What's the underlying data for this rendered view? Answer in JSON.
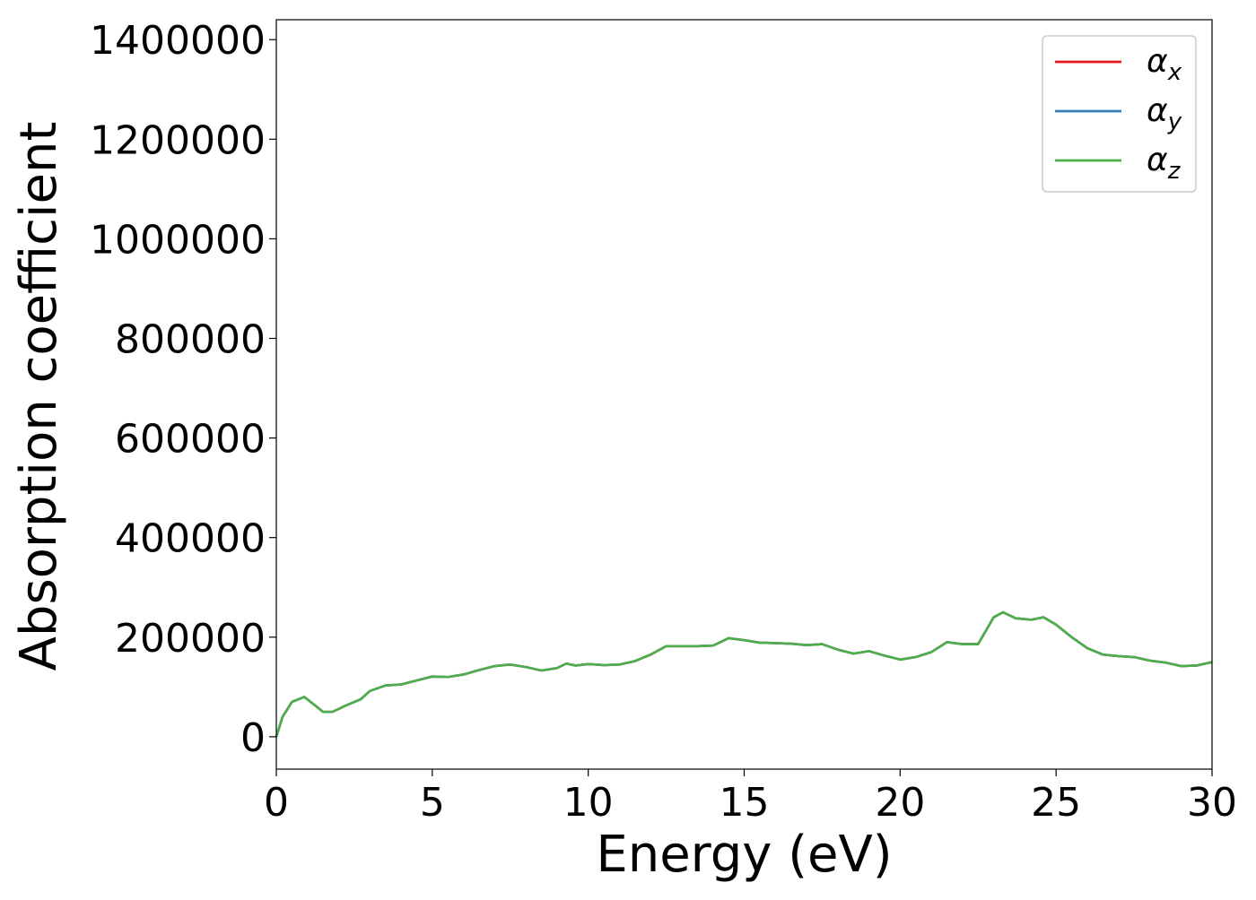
{
  "chart_data": {
    "type": "line",
    "xlabel": "Energy (eV)",
    "ylabel": "Absorption coefficient",
    "xlim": [
      0,
      30
    ],
    "ylim": [
      -65000,
      1440000
    ],
    "x_ticks": [
      0,
      5,
      10,
      15,
      20,
      25,
      30
    ],
    "x_tick_labels": [
      "0",
      "5",
      "10",
      "15",
      "20",
      "25",
      "30"
    ],
    "y_ticks": [
      0,
      200000,
      400000,
      600000,
      800000,
      1000000,
      1200000,
      1400000
    ],
    "y_tick_labels": [
      "0",
      "200000",
      "400000",
      "600000",
      "800000",
      "1000000",
      "1200000",
      "1400000"
    ],
    "grid": false,
    "legend_position": "top-right",
    "x": [
      0,
      0.2,
      0.5,
      0.9,
      1.2,
      1.5,
      1.8,
      2.2,
      2.7,
      3.0,
      3.5,
      4.0,
      4.5,
      5.0,
      5.5,
      6.0,
      6.5,
      7.0,
      7.5,
      8.0,
      8.5,
      9.0,
      9.3,
      9.6,
      10.0,
      10.5,
      11.0,
      11.5,
      12.0,
      12.5,
      13.0,
      13.5,
      14.0,
      14.5,
      15.0,
      15.5,
      16.0,
      16.5,
      17.0,
      17.5,
      18.0,
      18.5,
      19.0,
      19.5,
      20.0,
      20.5,
      21.0,
      21.5,
      22.0,
      22.5,
      23.0,
      23.3,
      23.7,
      24.2,
      24.6,
      25.0,
      25.5,
      26.0,
      26.5,
      27.0,
      27.5,
      28.0,
      28.5,
      29.0,
      29.5,
      30.0
    ],
    "series": [
      {
        "name": "α_x",
        "color": "#e41a1c",
        "values": [
          0,
          40000,
          70000,
          80000,
          65000,
          50000,
          50000,
          62000,
          75000,
          92000,
          103000,
          105000,
          113000,
          121000,
          120000,
          125000,
          134000,
          142000,
          145000,
          140000,
          133000,
          138000,
          147000,
          143000,
          146000,
          144000,
          145000,
          152000,
          165000,
          182000,
          182000,
          182000,
          183000,
          198000,
          194000,
          189000,
          188000,
          187000,
          184000,
          186000,
          175000,
          167000,
          172000,
          163000,
          155000,
          160000,
          170000,
          190000,
          186000,
          186000,
          240000,
          250000,
          238000,
          235000,
          240000,
          225000,
          200000,
          178000,
          165000,
          162000,
          160000,
          153000,
          149000,
          142000,
          143000,
          150000
        ]
      },
      {
        "name": "α_y",
        "color": "#377eb8",
        "values": [
          0,
          40000,
          70000,
          80000,
          65000,
          50000,
          50000,
          62000,
          75000,
          92000,
          103000,
          105000,
          113000,
          121000,
          120000,
          125000,
          134000,
          142000,
          145000,
          140000,
          133000,
          138000,
          147000,
          143000,
          146000,
          144000,
          145000,
          152000,
          165000,
          182000,
          182000,
          182000,
          183000,
          198000,
          194000,
          189000,
          188000,
          187000,
          184000,
          186000,
          175000,
          167000,
          172000,
          163000,
          155000,
          160000,
          170000,
          190000,
          186000,
          186000,
          240000,
          250000,
          238000,
          235000,
          240000,
          225000,
          200000,
          178000,
          165000,
          162000,
          160000,
          153000,
          149000,
          142000,
          143000,
          150000
        ]
      },
      {
        "name": "α_z",
        "color": "#4daf4a",
        "values": [
          0,
          40000,
          70000,
          80000,
          65000,
          50000,
          50000,
          62000,
          75000,
          92000,
          103000,
          105000,
          113000,
          121000,
          120000,
          125000,
          134000,
          142000,
          145000,
          140000,
          133000,
          138000,
          147000,
          143000,
          146000,
          144000,
          145000,
          152000,
          165000,
          182000,
          182000,
          182000,
          183000,
          198000,
          194000,
          189000,
          188000,
          187000,
          184000,
          186000,
          175000,
          167000,
          172000,
          163000,
          155000,
          160000,
          170000,
          190000,
          186000,
          186000,
          240000,
          250000,
          238000,
          235000,
          240000,
          225000,
          200000,
          178000,
          165000,
          162000,
          160000,
          153000,
          149000,
          142000,
          143000,
          150000
        ]
      }
    ]
  }
}
